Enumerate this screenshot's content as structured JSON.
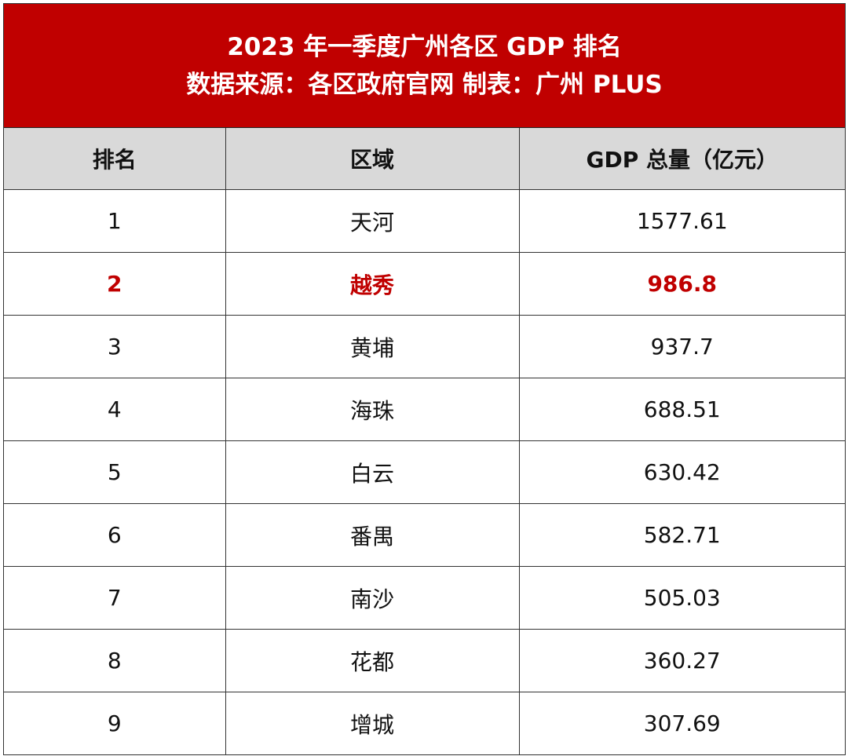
{
  "title": "2023 年一季度广州各区 GDP 排名",
  "subtitle": "数据来源：各区政府官网  制表：广州 PLUS",
  "colors": {
    "title_bg": "#C00000",
    "header_bg": "#D9D9D9",
    "highlight": "#C00000"
  },
  "chart_data": {
    "type": "table",
    "title": "2023 年一季度广州各区 GDP 排名",
    "columns": [
      "排名",
      "区域",
      "GDP 总量（亿元）"
    ],
    "highlighted_row": 1,
    "rows": [
      [
        "1",
        "天河",
        "1577.61"
      ],
      [
        "2",
        "越秀",
        "986.8"
      ],
      [
        "3",
        "黄埔",
        "937.7"
      ],
      [
        "4",
        "海珠",
        "688.51"
      ],
      [
        "5",
        "白云",
        "630.42"
      ],
      [
        "6",
        "番禺",
        "582.71"
      ],
      [
        "7",
        "南沙",
        "505.03"
      ],
      [
        "8",
        "花都",
        "360.27"
      ],
      [
        "9",
        "增城",
        "307.69"
      ]
    ]
  }
}
